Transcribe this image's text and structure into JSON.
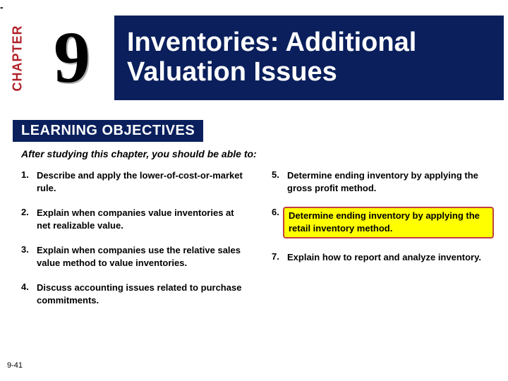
{
  "colors": {
    "brand_red": "#b12028",
    "brand_navy": "#0a1f5c",
    "highlight_fill": "#ffff00",
    "highlight_border": "#c04040",
    "text": "#000000",
    "bg": "#ffffff"
  },
  "top_dash": "-",
  "chapter": {
    "label": "CHAPTER",
    "number": "9",
    "title_line1": "Inventories: Additional",
    "title_line2": "Valuation Issues"
  },
  "lo_heading": "LEARNING OBJECTIVES",
  "intro_text": "After studying this chapter, you should be able to:",
  "objectives_left": [
    {
      "n": "1.",
      "text": "Describe and apply the lower-of-cost-or-market rule."
    },
    {
      "n": "2.",
      "text": "Explain when companies value inventories at net realizable value."
    },
    {
      "n": "3.",
      "text": "Explain when companies use the relative sales value method to value inventories."
    },
    {
      "n": "4.",
      "text": "Discuss accounting issues related to purchase commitments."
    }
  ],
  "objectives_right": [
    {
      "n": "5.",
      "text": "Determine ending inventory by applying the gross profit method."
    },
    {
      "n": "6.",
      "text": "Determine ending inventory by applying the retail inventory method.",
      "highlight": true
    },
    {
      "n": "7.",
      "text": "Explain how to report and analyze inventory."
    }
  ],
  "page_number": "9-41",
  "typography": {
    "title_fontsize": 38,
    "chapter_num_fontsize": 104,
    "lo_heading_fontsize": 20,
    "intro_fontsize": 14,
    "objective_fontsize": 13,
    "page_num_fontsize": 11
  }
}
